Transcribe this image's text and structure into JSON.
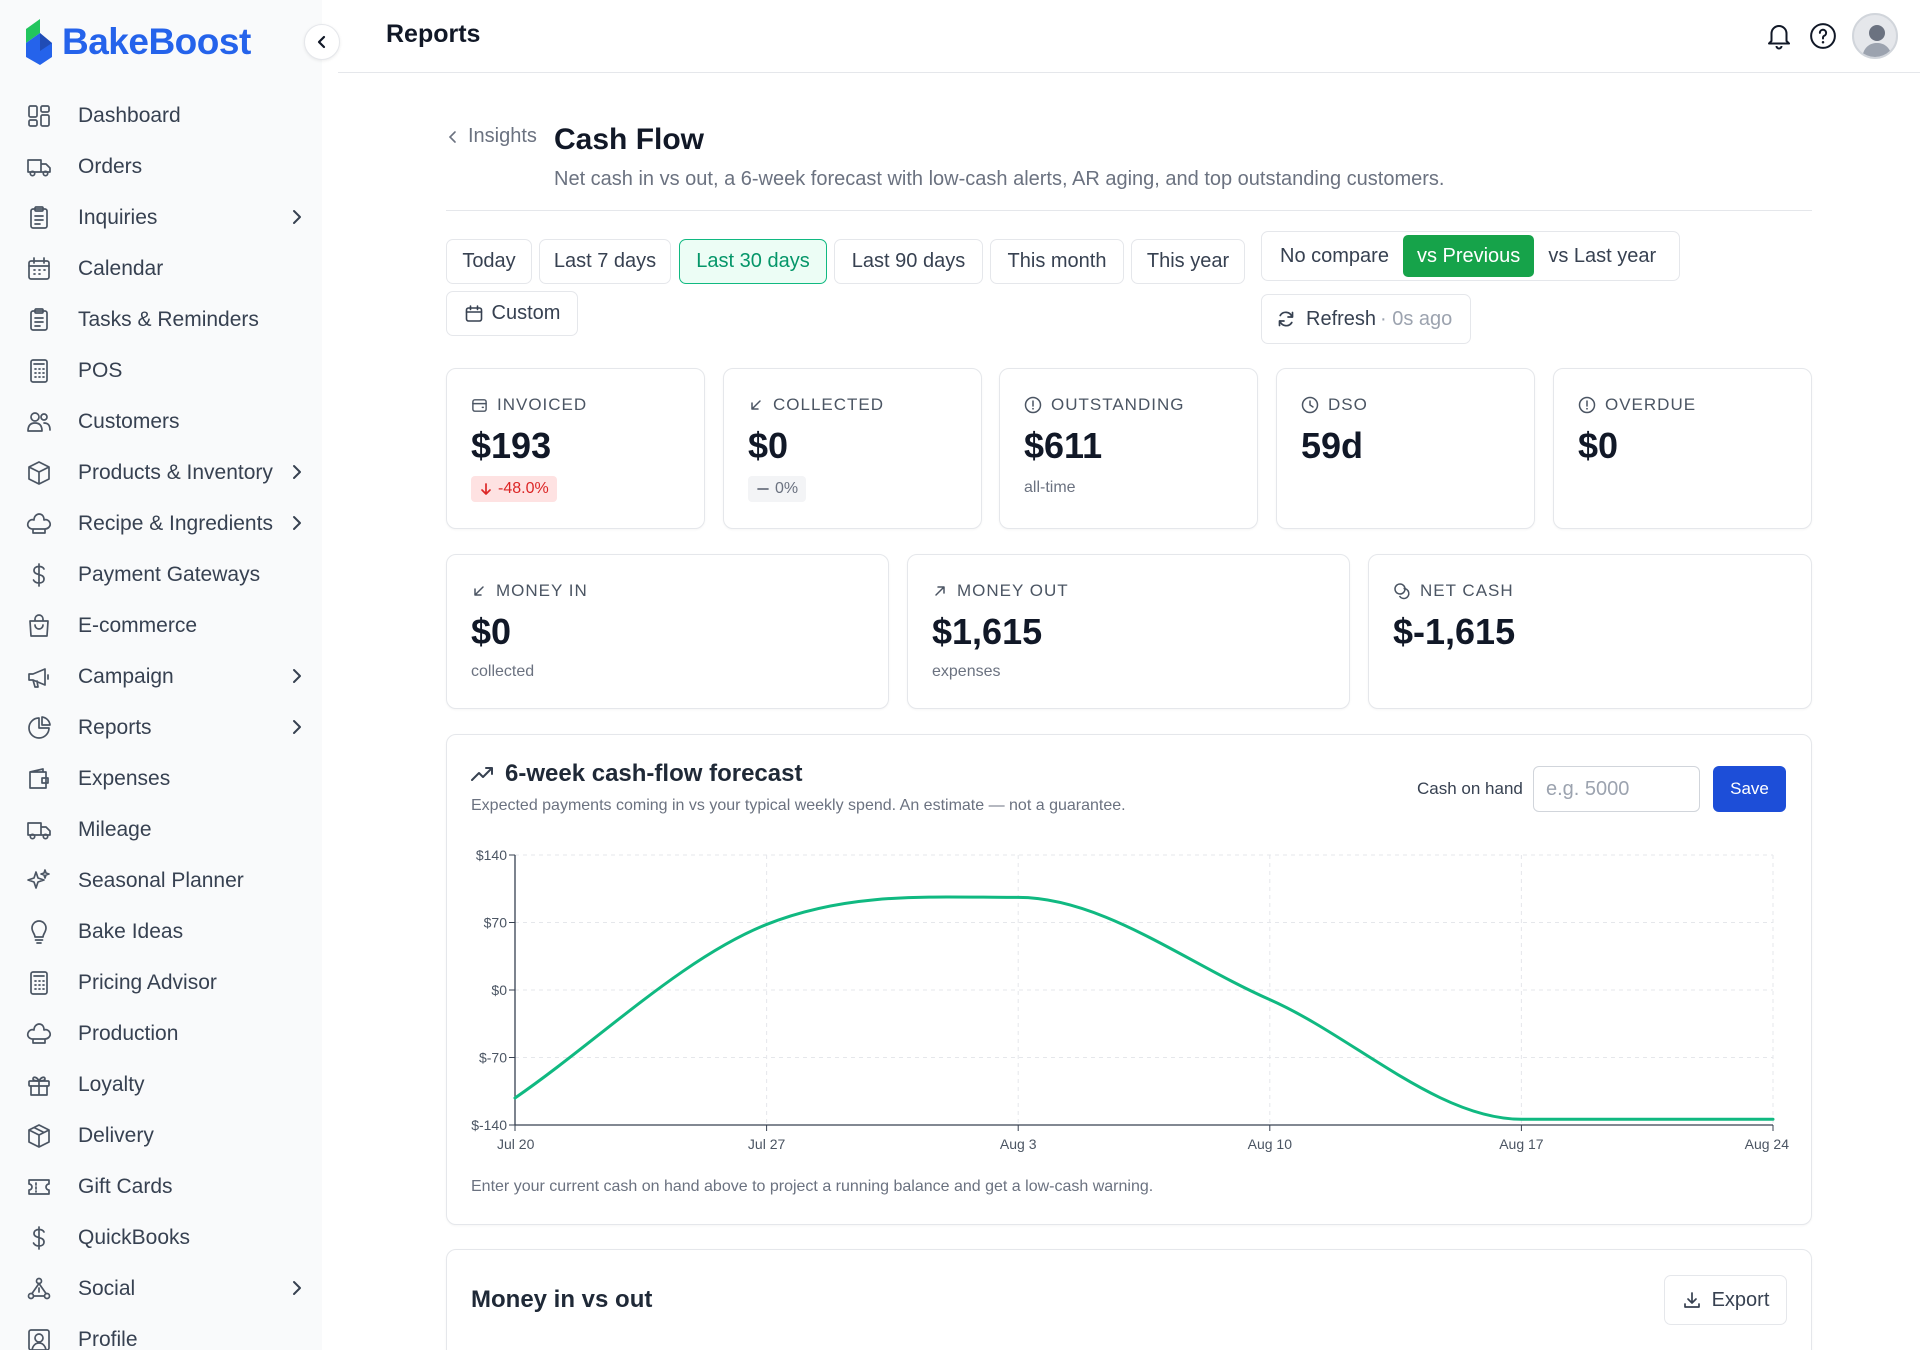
{
  "app": {
    "name": "BakeBoost",
    "brand_color": "#2563eb",
    "accent_color": "#10b981"
  },
  "topbar": {
    "title": "Reports"
  },
  "sidebar": {
    "items": [
      {
        "label": "Dashboard",
        "icon": "dashboard-icon",
        "has_children": false
      },
      {
        "label": "Orders",
        "icon": "truck-icon",
        "has_children": false
      },
      {
        "label": "Inquiries",
        "icon": "clipboard-icon",
        "has_children": true
      },
      {
        "label": "Calendar",
        "icon": "calendar-icon",
        "has_children": false
      },
      {
        "label": "Tasks & Reminders",
        "icon": "clipboard-list-icon",
        "has_children": false
      },
      {
        "label": "POS",
        "icon": "calculator-icon",
        "has_children": false
      },
      {
        "label": "Customers",
        "icon": "users-icon",
        "has_children": false
      },
      {
        "label": "Products & Inventory",
        "icon": "box-icon",
        "has_children": true
      },
      {
        "label": "Recipe & Ingredients",
        "icon": "chef-hat-icon",
        "has_children": true
      },
      {
        "label": "Payment Gateways",
        "icon": "dollar-icon",
        "has_children": false
      },
      {
        "label": "E-commerce",
        "icon": "shopping-bag-icon",
        "has_children": false
      },
      {
        "label": "Campaign",
        "icon": "megaphone-icon",
        "has_children": true
      },
      {
        "label": "Reports",
        "icon": "pie-chart-icon",
        "has_children": true
      },
      {
        "label": "Expenses",
        "icon": "wallet-icon",
        "has_children": false
      },
      {
        "label": "Mileage",
        "icon": "truck-icon",
        "has_children": false
      },
      {
        "label": "Seasonal Planner",
        "icon": "sparkles-icon",
        "has_children": false
      },
      {
        "label": "Bake Ideas",
        "icon": "lightbulb-icon",
        "has_children": false
      },
      {
        "label": "Pricing Advisor",
        "icon": "calculator-icon",
        "has_children": false
      },
      {
        "label": "Production",
        "icon": "chef-hat-icon",
        "has_children": false
      },
      {
        "label": "Loyalty",
        "icon": "gift-icon",
        "has_children": false
      },
      {
        "label": "Delivery",
        "icon": "package-icon",
        "has_children": false
      },
      {
        "label": "Gift Cards",
        "icon": "ticket-icon",
        "has_children": false
      },
      {
        "label": "QuickBooks",
        "icon": "dollar-icon",
        "has_children": false
      },
      {
        "label": "Social",
        "icon": "share-network-icon",
        "has_children": true
      },
      {
        "label": "Profile",
        "icon": "user-square-icon",
        "has_children": false
      }
    ]
  },
  "header": {
    "breadcrumb": "Insights",
    "title": "Cash Flow",
    "subtitle": "Net cash in vs out, a 6-week forecast with low-cash alerts, AR aging, and top outstanding customers."
  },
  "filters": {
    "ranges": [
      {
        "label": "Today",
        "active": false
      },
      {
        "label": "Last 7 days",
        "active": false
      },
      {
        "label": "Last 30 days",
        "active": true
      },
      {
        "label": "Last 90 days",
        "active": false
      },
      {
        "label": "This month",
        "active": false
      },
      {
        "label": "This year",
        "active": false
      }
    ],
    "custom_label": "Custom",
    "compare": [
      {
        "label": "No compare",
        "active": false
      },
      {
        "label": "vs Previous",
        "active": true
      },
      {
        "label": "vs Last year",
        "active": false
      }
    ],
    "refresh_label": "Refresh",
    "refresh_ago": "· 0s ago"
  },
  "kpis": [
    {
      "label": "INVOICED",
      "value": "$193",
      "delta": "-48.0%",
      "delta_kind": "neg",
      "icon": "receipt-icon"
    },
    {
      "label": "COLLECTED",
      "value": "$0",
      "delta": "0%",
      "delta_kind": "flat",
      "icon": "arrow-down-left-icon"
    },
    {
      "label": "OUTSTANDING",
      "value": "$611",
      "note": "all-time",
      "icon": "alert-circle-icon"
    },
    {
      "label": "DSO",
      "value": "59d",
      "icon": "clock-icon"
    },
    {
      "label": "OVERDUE",
      "value": "$0",
      "icon": "alert-circle-icon"
    }
  ],
  "money": [
    {
      "label": "MONEY IN",
      "value": "$0",
      "note": "collected",
      "icon": "arrow-down-left-icon"
    },
    {
      "label": "MONEY OUT",
      "value": "$1,615",
      "note": "expenses",
      "icon": "arrow-up-right-icon"
    },
    {
      "label": "NET CASH",
      "value": "$-1,615",
      "icon": "coins-icon"
    }
  ],
  "forecast": {
    "title": "6-week cash-flow forecast",
    "subtitle": "Expected payments coming in vs your typical weekly spend. An estimate — not a guarantee.",
    "cash_label": "Cash on hand",
    "cash_placeholder": "e.g. 5000",
    "save_label": "Save",
    "hint": "Enter your current cash on hand above to project a running balance and get a low-cash warning."
  },
  "chart_data": {
    "type": "line",
    "x": [
      "Jul 20",
      "Jul 27",
      "Aug 3",
      "Aug 10",
      "Aug 17",
      "Aug 24"
    ],
    "series": [
      {
        "values": [
          -112,
          68,
          96,
          -10,
          -134,
          -134
        ],
        "color": "#10b981"
      }
    ],
    "y_ticks": [
      "$140",
      "$70",
      "$0",
      "$-70",
      "$-140"
    ],
    "ylim": [
      -140,
      140
    ],
    "grid": true
  },
  "money_in_out": {
    "title": "Money in vs out",
    "export_label": "Export"
  }
}
